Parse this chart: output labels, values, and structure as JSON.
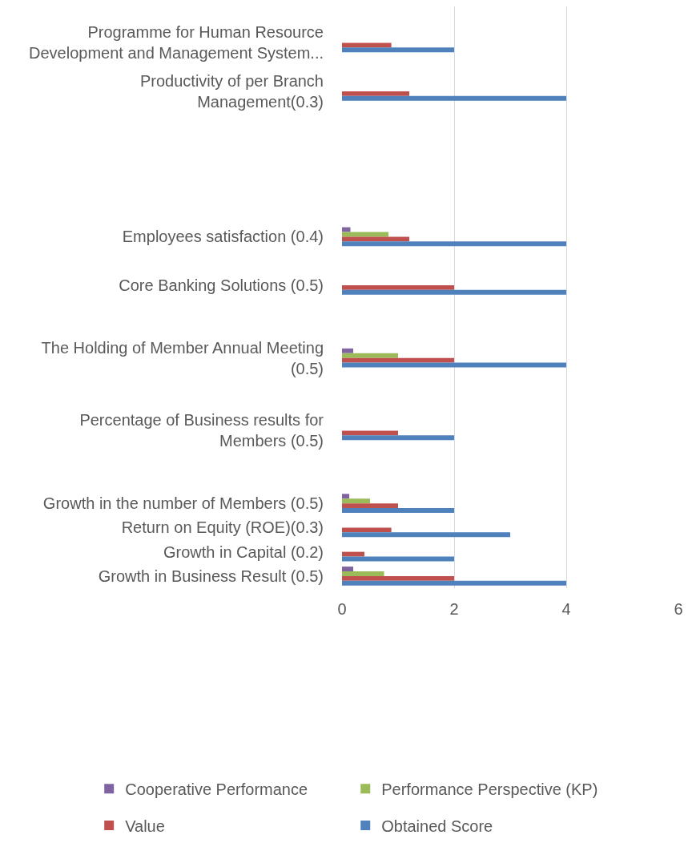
{
  "chart_data": {
    "type": "bar",
    "orientation": "horizontal",
    "categories": [
      null,
      "Programme for Human Resource Development and Management System...",
      null,
      "Productivity of per Branch Management(0.3)",
      null,
      null,
      null,
      null,
      null,
      "Employees satisfaction (0.4)",
      null,
      "Core Banking Solutions (0.5)",
      null,
      null,
      "The Holding of Member Annual Meeting (0.5)",
      null,
      null,
      "Percentage of Business results for Members (0.5)",
      null,
      null,
      "Growth in the number of Members (0.5)",
      "Return on Equity (ROE)(0.3)",
      "Growth in Capital (0.2)",
      "Growth in Business Result (0.5)"
    ],
    "series": [
      {
        "name": "Cooperative Performance",
        "color": "#8064a2",
        "values": [
          null,
          null,
          null,
          null,
          null,
          null,
          null,
          null,
          null,
          0.15,
          null,
          null,
          null,
          null,
          0.2,
          null,
          null,
          null,
          null,
          null,
          0.13,
          null,
          null,
          0.2
        ]
      },
      {
        "name": "Performance Perspective (KP)",
        "color": "#9bbb59",
        "values": [
          null,
          null,
          null,
          null,
          null,
          null,
          null,
          null,
          null,
          0.83,
          null,
          null,
          null,
          null,
          1.0,
          null,
          null,
          null,
          null,
          null,
          0.5,
          null,
          null,
          0.75
        ]
      },
      {
        "name": "Value",
        "color": "#c0504d",
        "values": [
          null,
          0.88,
          null,
          1.2,
          null,
          null,
          null,
          null,
          null,
          1.2,
          null,
          2,
          null,
          null,
          2,
          null,
          null,
          1.0,
          null,
          null,
          1.0,
          0.88,
          0.4,
          2
        ]
      },
      {
        "name": "Obtained Score",
        "color": "#4f81bd",
        "values": [
          null,
          2,
          null,
          4,
          null,
          null,
          null,
          null,
          null,
          4,
          null,
          4,
          null,
          null,
          4,
          null,
          null,
          2,
          null,
          null,
          2,
          3,
          2,
          4
        ]
      }
    ],
    "xlim": [
      0,
      6
    ],
    "xticks": [
      0,
      2,
      4,
      6
    ],
    "grid": "x",
    "legend": "bottom"
  }
}
